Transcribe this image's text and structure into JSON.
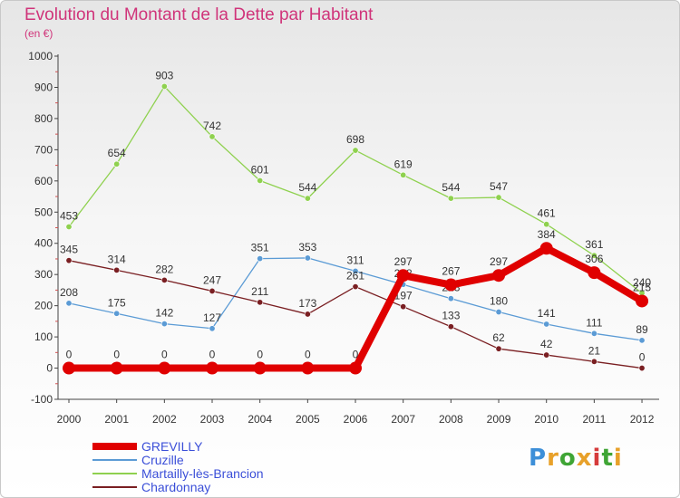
{
  "title": "Evolution du Montant de la Dette par Habitant",
  "subtitle": "(en €)",
  "logo": {
    "text": "Proxiti",
    "colors": [
      "#3d8fd8",
      "#e8a12a",
      "#3fa535",
      "#e8a12a",
      "#d63b3b",
      "#3fa535",
      "#e8a12a"
    ]
  },
  "chart_data": {
    "type": "line",
    "x": [
      "2000",
      "2001",
      "2002",
      "2003",
      "2004",
      "2005",
      "2006",
      "2007",
      "2008",
      "2009",
      "2010",
      "2011",
      "2012"
    ],
    "ylim": [
      -100,
      1000
    ],
    "yticks": [
      -100,
      0,
      100,
      200,
      300,
      400,
      500,
      600,
      700,
      800,
      900,
      1000
    ],
    "grid": false,
    "legend_position": "bottom-left",
    "series": [
      {
        "name": "Martailly-lès-Brancion",
        "color": "#8fd14f",
        "values": [
          453,
          654,
          903,
          742,
          601,
          544,
          698,
          619,
          544,
          547,
          461,
          361,
          240
        ]
      },
      {
        "name": "Cruzille",
        "color": "#5b9bd5",
        "values": [
          208,
          175,
          142,
          127,
          351,
          353,
          311,
          268,
          223,
          180,
          141,
          111,
          89
        ]
      },
      {
        "name": "Chardonnay",
        "color": "#7a1f22",
        "values": [
          345,
          314,
          282,
          247,
          211,
          173,
          261,
          197,
          133,
          62,
          42,
          21,
          0
        ]
      },
      {
        "name": "GREVILLY",
        "color": "#e00000",
        "values": [
          0,
          0,
          0,
          0,
          0,
          0,
          0,
          297,
          267,
          297,
          384,
          306,
          215
        ]
      }
    ],
    "legend_order": [
      "GREVILLY",
      "Cruzille",
      "Martailly-lès-Brancion",
      "Chardonnay"
    ]
  }
}
